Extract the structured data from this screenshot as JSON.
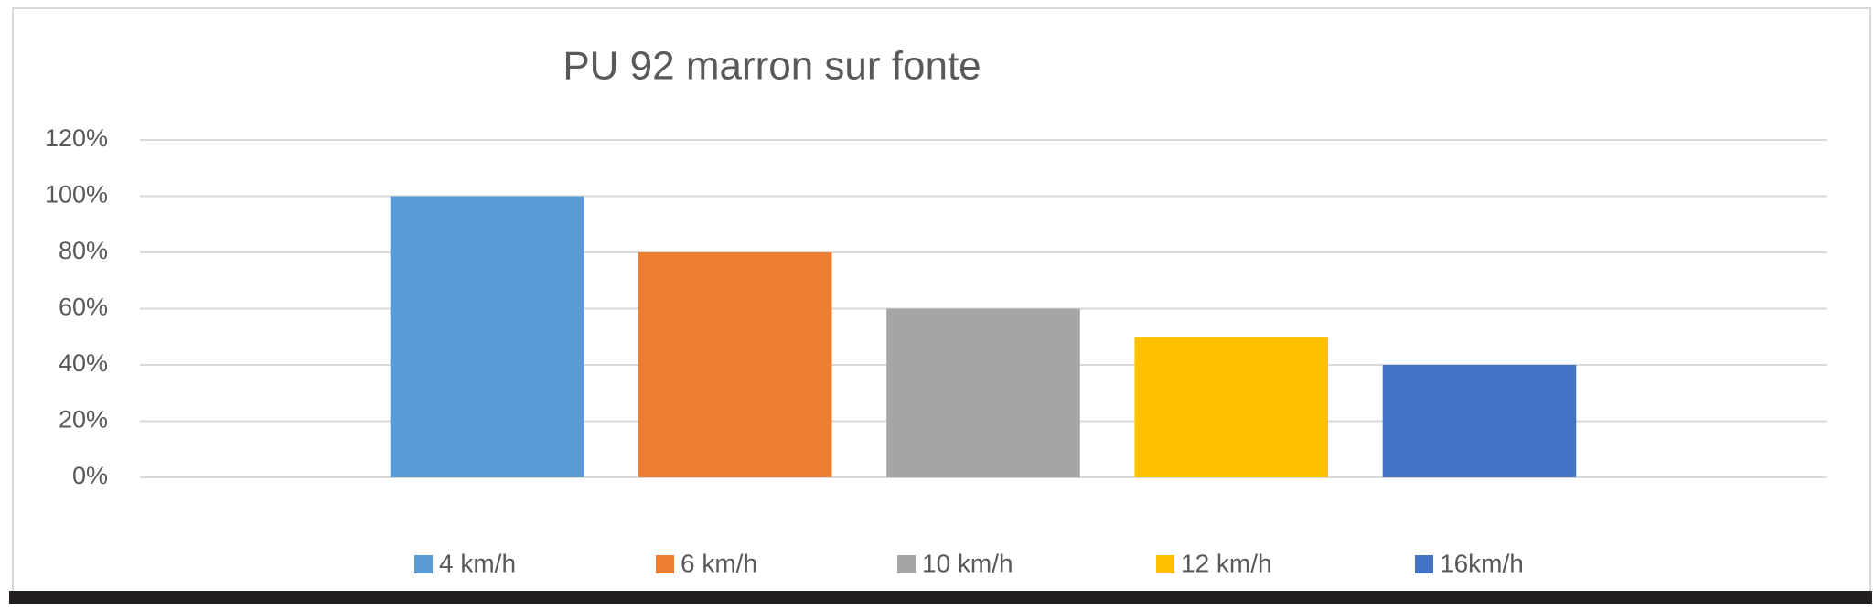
{
  "chart_data": {
    "type": "bar",
    "title": "PU 92 marron sur fonte",
    "categories": [
      null
    ],
    "series": [
      {
        "name": "4 km/h",
        "color": "#5b9bd5",
        "values": [
          100
        ]
      },
      {
        "name": "6 km/h",
        "color": "#ed7d31",
        "values": [
          80
        ]
      },
      {
        "name": "10 km/h",
        "color": "#a5a5a5",
        "values": [
          60
        ]
      },
      {
        "name": "12 km/h",
        "color": "#ffc000",
        "values": [
          50
        ]
      },
      {
        "name": "16km/h",
        "color": "#4472c4",
        "values": [
          40
        ]
      }
    ],
    "ylim": [
      0,
      120
    ],
    "yticks": [
      {
        "value": 0,
        "label": "0%"
      },
      {
        "value": 20,
        "label": "20%"
      },
      {
        "value": 40,
        "label": "40%"
      },
      {
        "value": 60,
        "label": "60%"
      },
      {
        "value": 80,
        "label": "80%"
      },
      {
        "value": 100,
        "label": "100%"
      },
      {
        "value": 120,
        "label": "120%"
      }
    ],
    "grid": true,
    "legend": "bottom"
  }
}
